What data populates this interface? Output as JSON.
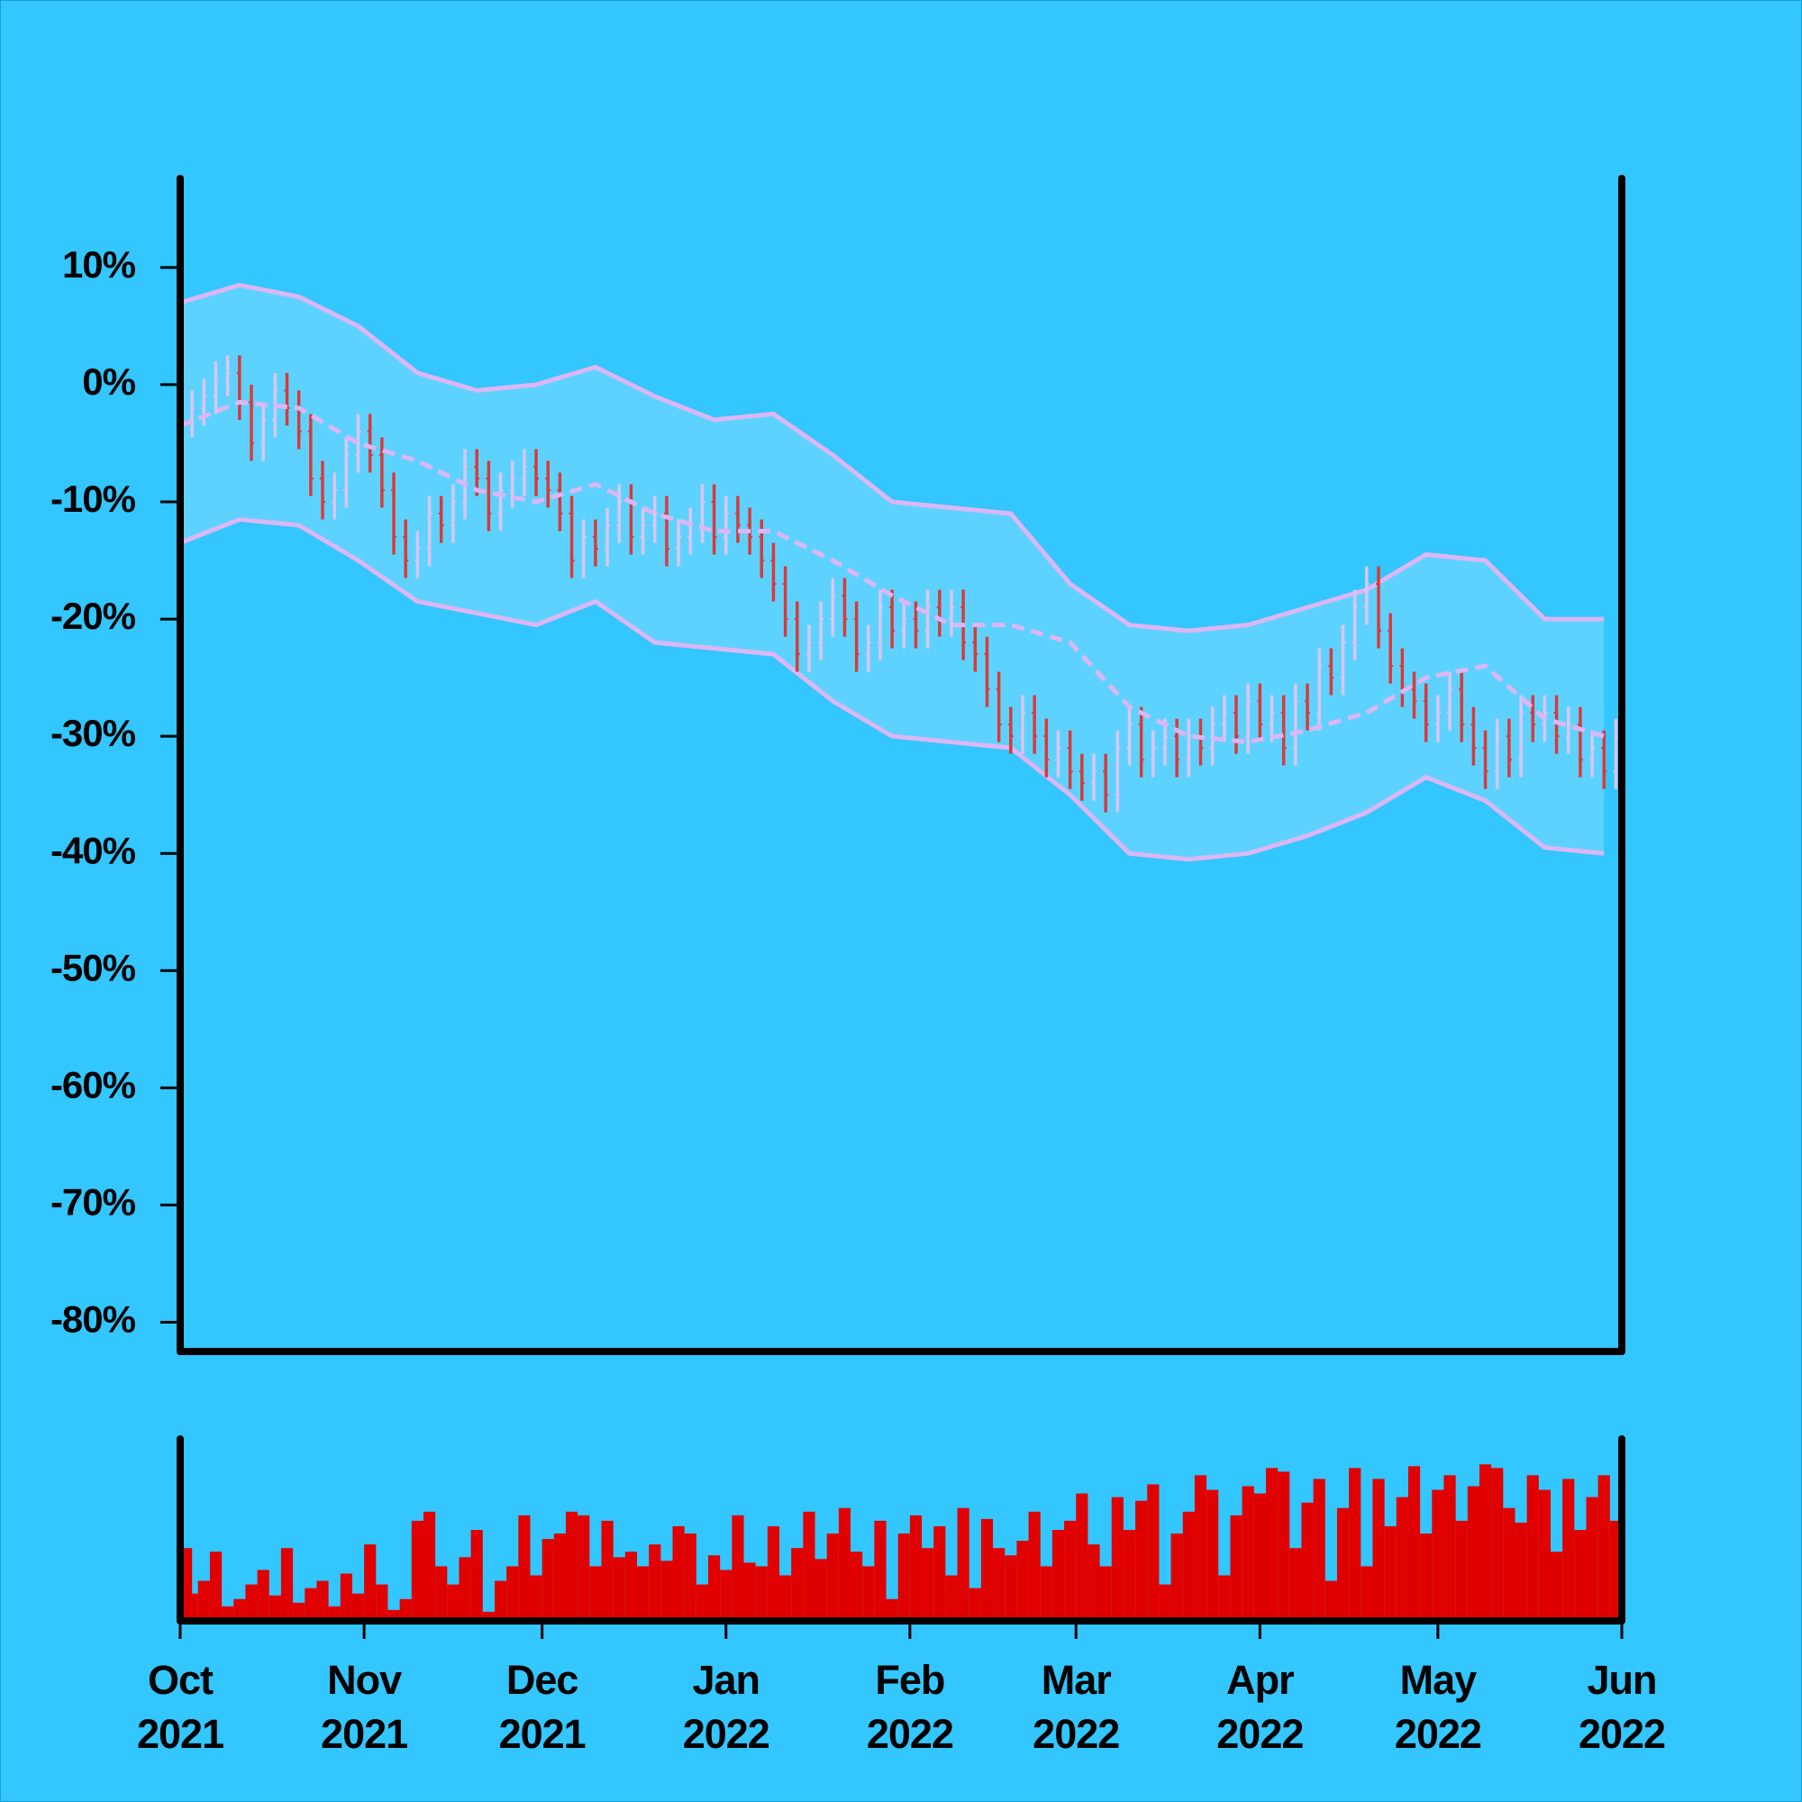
{
  "chart_data": {
    "type": "ohlc",
    "background": "#33c6ff",
    "up_color": "#d9c6f2",
    "down_color": "#d83a3a",
    "xlim": [
      0,
      243
    ],
    "xticks": [
      {
        "value": 0,
        "label": "Oct 2021"
      },
      {
        "value": 31,
        "label": "Nov 2021"
      },
      {
        "value": 61,
        "label": "Dec 2021"
      },
      {
        "value": 92,
        "label": "Jan 2022"
      },
      {
        "value": 123,
        "label": "Feb 2022"
      },
      {
        "value": 151,
        "label": "Mar 2022"
      },
      {
        "value": 182,
        "label": "Apr 2022"
      },
      {
        "value": 212,
        "label": "May 2022"
      },
      {
        "value": 243,
        "label": "Jun 2022"
      }
    ],
    "ylim": [
      -82.5,
      17.6
    ],
    "yticks": [
      {
        "value": 10,
        "label": "10%"
      },
      {
        "value": 0,
        "label": "0%"
      },
      {
        "value": -10,
        "label": "-10%"
      },
      {
        "value": -20,
        "label": "-20%"
      },
      {
        "value": -30,
        "label": "-30%"
      },
      {
        "value": -40,
        "label": "-40%"
      },
      {
        "value": -50,
        "label": "-50%"
      },
      {
        "value": -60,
        "label": "-60%"
      },
      {
        "value": -70,
        "label": "-70%"
      },
      {
        "value": -80,
        "label": "-80%"
      }
    ],
    "x": [
      0,
      2,
      4,
      6,
      8,
      10,
      12,
      14,
      16,
      18,
      20,
      22,
      24,
      26,
      28,
      30,
      32,
      34,
      36,
      38,
      40,
      42,
      44,
      46,
      48,
      50,
      52,
      54,
      56,
      58,
      60,
      62,
      64,
      66,
      68,
      70,
      72,
      74,
      76,
      78,
      80,
      82,
      84,
      86,
      88,
      90,
      92,
      94,
      96,
      98,
      100,
      102,
      104,
      106,
      108,
      110,
      112,
      114,
      116,
      118,
      120,
      122,
      124,
      126,
      128,
      130,
      132,
      134,
      136,
      138,
      140,
      142,
      144,
      146,
      148,
      150,
      152,
      154,
      156,
      158,
      160,
      162,
      164,
      166,
      168,
      170,
      172,
      174,
      176,
      178,
      180,
      182,
      184,
      186,
      188,
      190,
      192,
      194,
      196,
      198,
      200,
      202,
      204,
      206,
      208,
      210,
      212,
      214,
      216,
      218,
      220,
      222,
      224,
      226,
      228,
      230,
      232,
      234,
      236,
      238,
      240,
      242
    ],
    "open": [
      -4,
      -3,
      -2,
      -1,
      0.5,
      1,
      -1.5,
      -5,
      -3,
      -0.5,
      -2,
      -4,
      -8,
      -10,
      -9,
      -6,
      -4,
      -6,
      -9,
      -13,
      -15,
      -14,
      -11,
      -12,
      -10,
      -7,
      -8,
      -11,
      -9,
      -8,
      -7,
      -8,
      -9,
      -11,
      -15,
      -13,
      -14,
      -12,
      -10,
      -13,
      -12,
      -11,
      -14,
      -13,
      -12,
      -10,
      -13,
      -11,
      -12,
      -13,
      -15,
      -17,
      -20,
      -23,
      -22,
      -20,
      -18,
      -20,
      -23,
      -22,
      -19,
      -21,
      -20,
      -21,
      -19,
      -20,
      -19,
      -22,
      -23,
      -26,
      -29,
      -30,
      -28,
      -30,
      -32,
      -31,
      -33,
      -34,
      -33,
      -35,
      -31,
      -29,
      -32,
      -31,
      -30,
      -32,
      -30,
      -31,
      -29,
      -28,
      -30,
      -27,
      -29,
      -28,
      -31,
      -27,
      -28,
      -24,
      -25,
      -22,
      -19,
      -17,
      -21,
      -24,
      -26,
      -27,
      -29,
      -28,
      -26,
      -29,
      -31,
      -33,
      -30,
      -32,
      -28,
      -29,
      -28,
      -30,
      -29,
      -32,
      -31,
      -33
    ],
    "high": [
      -1.5,
      -0.5,
      0.5,
      2,
      2.5,
      2.5,
      0,
      -1.5,
      1,
      1,
      -0.5,
      -2.5,
      -6.5,
      -7.5,
      -4.5,
      -2.5,
      -2.5,
      -4.5,
      -7.5,
      -11.5,
      -12.5,
      -9.5,
      -9.5,
      -8.5,
      -5.5,
      -5.5,
      -6.5,
      -7.5,
      -6.5,
      -5.5,
      -5.5,
      -6.5,
      -7.5,
      -9.5,
      -11.5,
      -11.5,
      -10.5,
      -8.5,
      -8.5,
      -10.5,
      -9.5,
      -9.5,
      -11.5,
      -10.5,
      -8.5,
      -8.5,
      -9.5,
      -9.5,
      -10.5,
      -11.5,
      -13.5,
      -15.5,
      -18.5,
      -20.5,
      -18.5,
      -16.5,
      -16.5,
      -18.5,
      -20.5,
      -17.5,
      -17.5,
      -18.5,
      -18.5,
      -17.5,
      -17.5,
      -17.5,
      -17.5,
      -20.5,
      -21.5,
      -24.5,
      -27.5,
      -26.5,
      -26.5,
      -28.5,
      -29.5,
      -29.5,
      -31.5,
      -31.5,
      -31.5,
      -29.5,
      -27.5,
      -27.5,
      -29.5,
      -28.5,
      -28.5,
      -28.5,
      -28.5,
      -27.5,
      -26.5,
      -26.5,
      -25.5,
      -25.5,
      -26.5,
      -26.5,
      -25.5,
      -25.5,
      -22.5,
      -22.5,
      -20.5,
      -17.5,
      -15.5,
      -15.5,
      -19.5,
      -22.5,
      -24.5,
      -25.5,
      -26.5,
      -24.5,
      -24.5,
      -27.5,
      -29.5,
      -28.5,
      -28.5,
      -26.5,
      -26.5,
      -26.5,
      -26.5,
      -27.5,
      -27.5,
      -29.5,
      -29.5,
      -28.5
    ],
    "low": [
      -5.5,
      -4.5,
      -3.5,
      -2.5,
      -1,
      -3,
      -6.5,
      -6.5,
      -4.5,
      -3.5,
      -5.5,
      -9.5,
      -11.5,
      -11.5,
      -10.5,
      -7.5,
      -7.5,
      -10.5,
      -14.5,
      -16.5,
      -16.5,
      -15.5,
      -13.5,
      -13.5,
      -11.5,
      -9.5,
      -12.5,
      -12.5,
      -10.5,
      -9.5,
      -9.5,
      -10.5,
      -12.5,
      -16.5,
      -16.5,
      -15.5,
      -15.5,
      -13.5,
      -14.5,
      -14.5,
      -13.5,
      -15.5,
      -15.5,
      -14.5,
      -13.5,
      -14.5,
      -14.5,
      -13.5,
      -14.5,
      -16.5,
      -18.5,
      -21.5,
      -24.5,
      -24.5,
      -23.5,
      -21.5,
      -21.5,
      -24.5,
      -24.5,
      -23.5,
      -22.5,
      -22.5,
      -22.5,
      -22.5,
      -21.5,
      -21.5,
      -23.5,
      -24.5,
      -27.5,
      -30.5,
      -31.5,
      -31.5,
      -31.5,
      -33.5,
      -33.5,
      -34.5,
      -35.5,
      -35.5,
      -36.5,
      -36.5,
      -32.5,
      -33.5,
      -33.5,
      -32.5,
      -33.5,
      -33.5,
      -32.5,
      -32.5,
      -30.5,
      -31.5,
      -31.5,
      -30.5,
      -30.5,
      -32.5,
      -32.5,
      -29.5,
      -29.5,
      -26.5,
      -26.5,
      -23.5,
      -20.5,
      -22.5,
      -25.5,
      -27.5,
      -28.5,
      -30.5,
      -30.5,
      -29.5,
      -30.5,
      -32.5,
      -34.5,
      -34.5,
      -33.5,
      -33.5,
      -30.5,
      -30.5,
      -31.5,
      -31.5,
      -33.5,
      -33.5,
      -34.5,
      -34.5
    ],
    "close": [
      -3,
      -2,
      -1,
      0.5,
      1,
      -1.5,
      -5,
      -3,
      -0.5,
      -2,
      -4,
      -8,
      -10,
      -9,
      -6,
      -4,
      -6,
      -9,
      -13,
      -15,
      -14,
      -11,
      -12,
      -10,
      -7,
      -8,
      -11,
      -9,
      -8,
      -7,
      -8,
      -9,
      -11,
      -15,
      -13,
      -14,
      -12,
      -10,
      -13,
      -12,
      -11,
      -14,
      -13,
      -12,
      -10,
      -13,
      -11,
      -12,
      -13,
      -15,
      -17,
      -20,
      -23,
      -22,
      -20,
      -18,
      -20,
      -23,
      -22,
      -19,
      -21,
      -20,
      -21,
      -19,
      -20,
      -19,
      -22,
      -23,
      -26,
      -29,
      -30,
      -28,
      -30,
      -32,
      -31,
      -33,
      -34,
      -33,
      -35,
      -31,
      -29,
      -32,
      -31,
      -30,
      -32,
      -30,
      -31,
      -29,
      -28,
      -30,
      -27,
      -29,
      -28,
      -31,
      -27,
      -28,
      -24,
      -25,
      -22,
      -19,
      -17,
      -21,
      -24,
      -26,
      -27,
      -29,
      -28,
      -26,
      -29,
      -31,
      -33,
      -30,
      -32,
      -28,
      -29,
      -28,
      -30,
      -29,
      -32,
      -31,
      -33,
      -30
    ],
    "bands": {
      "line_color": "#dcb6f5",
      "fill_color": "#5ed2ff",
      "x": [
        0,
        10,
        20,
        30,
        40,
        50,
        60,
        70,
        80,
        90,
        100,
        110,
        120,
        130,
        140,
        150,
        160,
        170,
        180,
        190,
        200,
        210,
        220,
        230,
        240
      ],
      "ma": [
        -3.5,
        -1.5,
        -2,
        -5,
        -6.5,
        -9,
        -10,
        -8.5,
        -11,
        -12.5,
        -12.5,
        -15,
        -18,
        -20.5,
        -20.5,
        -22,
        -27.5,
        -30,
        -30.5,
        -29.5,
        -28,
        -25,
        -24,
        -28.5,
        -30
      ],
      "upper": [
        7,
        8.5,
        7.5,
        5,
        1,
        -0.5,
        0,
        1.5,
        -1,
        -3,
        -2.5,
        -6,
        -10,
        -10.5,
        -11,
        -17,
        -20.5,
        -21,
        -20.5,
        -19,
        -17.5,
        -14.5,
        -15,
        -20,
        -20
      ],
      "lower": [
        -13.5,
        -11.5,
        -12,
        -15,
        -18.5,
        -19.5,
        -20.5,
        -18.5,
        -22,
        -22.5,
        -23,
        -27,
        -30,
        -30.5,
        -31,
        -35,
        -40,
        -40.5,
        -40,
        -38.5,
        -36.5,
        -33.5,
        -35.5,
        -39.5,
        -40
      ]
    },
    "volume": {
      "color": "#e00000",
      "ylim": [
        0,
        100
      ],
      "values": [
        40,
        15,
        22,
        38,
        8,
        12,
        20,
        28,
        14,
        40,
        10,
        18,
        22,
        8,
        26,
        15,
        42,
        20,
        6,
        12,
        55,
        60,
        30,
        20,
        35,
        50,
        5,
        22,
        30,
        58,
        25,
        45,
        48,
        60,
        58,
        30,
        55,
        35,
        38,
        30,
        42,
        33,
        52,
        48,
        20,
        36,
        28,
        58,
        32,
        30,
        52,
        25,
        40,
        60,
        34,
        48,
        62,
        38,
        30,
        55,
        12,
        48,
        58,
        40,
        52,
        25,
        62,
        18,
        56,
        40,
        36,
        44,
        60,
        30,
        50,
        55,
        70,
        42,
        30,
        68,
        50,
        66,
        75,
        20,
        48,
        60,
        80,
        72,
        25,
        58,
        74,
        70,
        84,
        82,
        40,
        65,
        78,
        22,
        62,
        84,
        30,
        78,
        52,
        68,
        85,
        48,
        72,
        80,
        55,
        74,
        86,
        84,
        62,
        54,
        80,
        72,
        38,
        78,
        50,
        68,
        80,
        55
      ]
    }
  }
}
